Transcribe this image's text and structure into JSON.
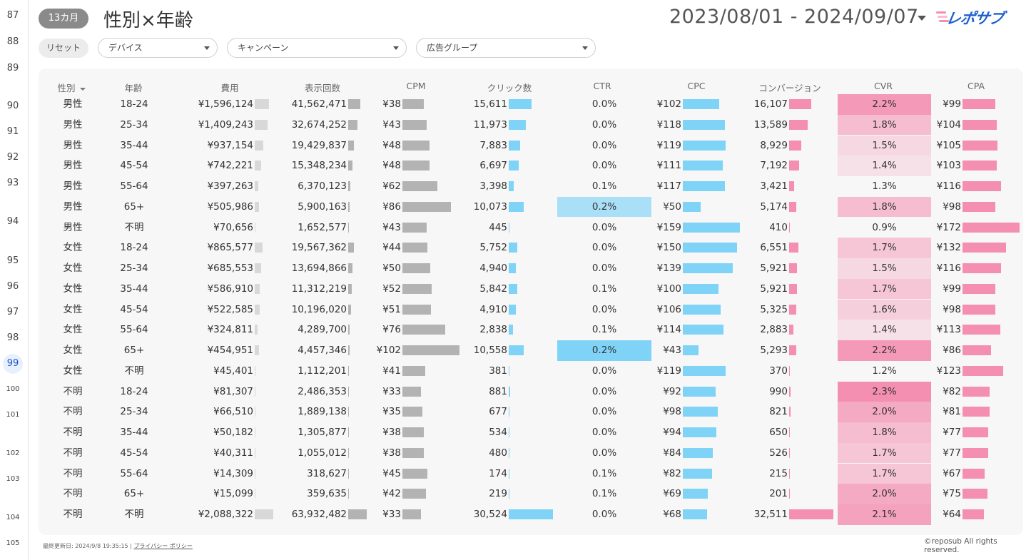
{
  "header": {
    "badge": "13カ月",
    "title": "性別×年齢",
    "date_range": "2023/08/01 - 2024/09/07",
    "logo_text": "レポサブ"
  },
  "filters": {
    "reset": "リセット",
    "device": "デバイス",
    "campaign": "キャンペーン",
    "adgroup": "広告グループ"
  },
  "row_numbers": [
    "87",
    "88",
    "89",
    "90",
    "91",
    "92",
    "93",
    "94",
    "95",
    "96",
    "97",
    "98",
    "99",
    "100",
    "101",
    "102",
    "103",
    "104",
    "105"
  ],
  "active_row_number": "99",
  "columns": [
    "性別",
    "年齢",
    "費用",
    "表示回数",
    "CPM",
    "クリック数",
    "CTR",
    "CPC",
    "コンバージョン",
    "CVR",
    "CPA"
  ],
  "rows": [
    {
      "gender": "男性",
      "age": "18-24",
      "cost": "¥1,596,124",
      "cost_v": 1596124,
      "imp": "41,562,471",
      "imp_v": 41562471,
      "cpm": "¥38",
      "cpm_v": 38,
      "clicks": "15,611",
      "clicks_v": 15611,
      "ctr": "0.0%",
      "ctr_v": 0.0,
      "cpc": "¥102",
      "cpc_v": 102,
      "conv": "16,107",
      "conv_v": 16107,
      "cvr": "2.2%",
      "cvr_v": 2.2,
      "cpa": "¥99",
      "cpa_v": 99
    },
    {
      "gender": "男性",
      "age": "25-34",
      "cost": "¥1,409,243",
      "cost_v": 1409243,
      "imp": "32,674,252",
      "imp_v": 32674252,
      "cpm": "¥43",
      "cpm_v": 43,
      "clicks": "11,973",
      "clicks_v": 11973,
      "ctr": "0.0%",
      "ctr_v": 0.0,
      "cpc": "¥118",
      "cpc_v": 118,
      "conv": "13,589",
      "conv_v": 13589,
      "cvr": "1.8%",
      "cvr_v": 1.8,
      "cpa": "¥104",
      "cpa_v": 104
    },
    {
      "gender": "男性",
      "age": "35-44",
      "cost": "¥937,154",
      "cost_v": 937154,
      "imp": "19,429,837",
      "imp_v": 19429837,
      "cpm": "¥48",
      "cpm_v": 48,
      "clicks": "7,883",
      "clicks_v": 7883,
      "ctr": "0.0%",
      "ctr_v": 0.0,
      "cpc": "¥119",
      "cpc_v": 119,
      "conv": "8,929",
      "conv_v": 8929,
      "cvr": "1.5%",
      "cvr_v": 1.5,
      "cpa": "¥105",
      "cpa_v": 105
    },
    {
      "gender": "男性",
      "age": "45-54",
      "cost": "¥742,221",
      "cost_v": 742221,
      "imp": "15,348,234",
      "imp_v": 15348234,
      "cpm": "¥48",
      "cpm_v": 48,
      "clicks": "6,697",
      "clicks_v": 6697,
      "ctr": "0.0%",
      "ctr_v": 0.0,
      "cpc": "¥111",
      "cpc_v": 111,
      "conv": "7,192",
      "conv_v": 7192,
      "cvr": "1.4%",
      "cvr_v": 1.4,
      "cpa": "¥103",
      "cpa_v": 103
    },
    {
      "gender": "男性",
      "age": "55-64",
      "cost": "¥397,263",
      "cost_v": 397263,
      "imp": "6,370,123",
      "imp_v": 6370123,
      "cpm": "¥62",
      "cpm_v": 62,
      "clicks": "3,398",
      "clicks_v": 3398,
      "ctr": "0.1%",
      "ctr_v": 0.1,
      "cpc": "¥117",
      "cpc_v": 117,
      "conv": "3,421",
      "conv_v": 3421,
      "cvr": "1.3%",
      "cvr_v": 1.3,
      "cpa": "¥116",
      "cpa_v": 116
    },
    {
      "gender": "男性",
      "age": "65+",
      "cost": "¥505,986",
      "cost_v": 505986,
      "imp": "5,900,163",
      "imp_v": 5900163,
      "cpm": "¥86",
      "cpm_v": 86,
      "clicks": "10,073",
      "clicks_v": 10073,
      "ctr": "0.2%",
      "ctr_v": 0.17,
      "cpc": "¥50",
      "cpc_v": 50,
      "conv": "5,174",
      "conv_v": 5174,
      "cvr": "1.8%",
      "cvr_v": 1.8,
      "cpa": "¥98",
      "cpa_v": 98
    },
    {
      "gender": "男性",
      "age": "不明",
      "cost": "¥70,656",
      "cost_v": 70656,
      "imp": "1,652,577",
      "imp_v": 1652577,
      "cpm": "¥43",
      "cpm_v": 43,
      "clicks": "445",
      "clicks_v": 445,
      "ctr": "0.0%",
      "ctr_v": 0.0,
      "cpc": "¥159",
      "cpc_v": 159,
      "conv": "410",
      "conv_v": 410,
      "cvr": "0.9%",
      "cvr_v": 0.9,
      "cpa": "¥172",
      "cpa_v": 172
    },
    {
      "gender": "女性",
      "age": "18-24",
      "cost": "¥865,577",
      "cost_v": 865577,
      "imp": "19,567,362",
      "imp_v": 19567362,
      "cpm": "¥44",
      "cpm_v": 44,
      "clicks": "5,752",
      "clicks_v": 5752,
      "ctr": "0.0%",
      "ctr_v": 0.0,
      "cpc": "¥150",
      "cpc_v": 150,
      "conv": "6,551",
      "conv_v": 6551,
      "cvr": "1.7%",
      "cvr_v": 1.7,
      "cpa": "¥132",
      "cpa_v": 132
    },
    {
      "gender": "女性",
      "age": "25-34",
      "cost": "¥685,553",
      "cost_v": 685553,
      "imp": "13,694,866",
      "imp_v": 13694866,
      "cpm": "¥50",
      "cpm_v": 50,
      "clicks": "4,940",
      "clicks_v": 4940,
      "ctr": "0.0%",
      "ctr_v": 0.0,
      "cpc": "¥139",
      "cpc_v": 139,
      "conv": "5,921",
      "conv_v": 5921,
      "cvr": "1.5%",
      "cvr_v": 1.5,
      "cpa": "¥116",
      "cpa_v": 116
    },
    {
      "gender": "女性",
      "age": "35-44",
      "cost": "¥586,910",
      "cost_v": 586910,
      "imp": "11,312,219",
      "imp_v": 11312219,
      "cpm": "¥52",
      "cpm_v": 52,
      "clicks": "5,842",
      "clicks_v": 5842,
      "ctr": "0.1%",
      "ctr_v": 0.1,
      "cpc": "¥100",
      "cpc_v": 100,
      "conv": "5,921",
      "conv_v": 5921,
      "cvr": "1.7%",
      "cvr_v": 1.7,
      "cpa": "¥99",
      "cpa_v": 99
    },
    {
      "gender": "女性",
      "age": "45-54",
      "cost": "¥522,585",
      "cost_v": 522585,
      "imp": "10,196,020",
      "imp_v": 10196020,
      "cpm": "¥51",
      "cpm_v": 51,
      "clicks": "4,910",
      "clicks_v": 4910,
      "ctr": "0.0%",
      "ctr_v": 0.0,
      "cpc": "¥106",
      "cpc_v": 106,
      "conv": "5,325",
      "conv_v": 5325,
      "cvr": "1.6%",
      "cvr_v": 1.6,
      "cpa": "¥98",
      "cpa_v": 98
    },
    {
      "gender": "女性",
      "age": "55-64",
      "cost": "¥324,811",
      "cost_v": 324811,
      "imp": "4,289,700",
      "imp_v": 4289700,
      "cpm": "¥76",
      "cpm_v": 76,
      "clicks": "2,838",
      "clicks_v": 2838,
      "ctr": "0.1%",
      "ctr_v": 0.1,
      "cpc": "¥114",
      "cpc_v": 114,
      "conv": "2,883",
      "conv_v": 2883,
      "cvr": "1.4%",
      "cvr_v": 1.4,
      "cpa": "¥113",
      "cpa_v": 113
    },
    {
      "gender": "女性",
      "age": "65+",
      "cost": "¥454,951",
      "cost_v": 454951,
      "imp": "4,457,346",
      "imp_v": 4457346,
      "cpm": "¥102",
      "cpm_v": 102,
      "clicks": "10,558",
      "clicks_v": 10558,
      "ctr": "0.2%",
      "ctr_v": 0.24,
      "cpc": "¥43",
      "cpc_v": 43,
      "conv": "5,293",
      "conv_v": 5293,
      "cvr": "2.2%",
      "cvr_v": 2.2,
      "cpa": "¥86",
      "cpa_v": 86
    },
    {
      "gender": "女性",
      "age": "不明",
      "cost": "¥45,401",
      "cost_v": 45401,
      "imp": "1,112,201",
      "imp_v": 1112201,
      "cpm": "¥41",
      "cpm_v": 41,
      "clicks": "381",
      "clicks_v": 381,
      "ctr": "0.0%",
      "ctr_v": 0.0,
      "cpc": "¥119",
      "cpc_v": 119,
      "conv": "370",
      "conv_v": 370,
      "cvr": "1.2%",
      "cvr_v": 1.2,
      "cpa": "¥123",
      "cpa_v": 123
    },
    {
      "gender": "不明",
      "age": "18-24",
      "cost": "¥81,307",
      "cost_v": 81307,
      "imp": "2,486,353",
      "imp_v": 2486353,
      "cpm": "¥33",
      "cpm_v": 33,
      "clicks": "881",
      "clicks_v": 881,
      "ctr": "0.0%",
      "ctr_v": 0.0,
      "cpc": "¥92",
      "cpc_v": 92,
      "conv": "990",
      "conv_v": 990,
      "cvr": "2.3%",
      "cvr_v": 2.3,
      "cpa": "¥82",
      "cpa_v": 82
    },
    {
      "gender": "不明",
      "age": "25-34",
      "cost": "¥66,510",
      "cost_v": 66510,
      "imp": "1,889,138",
      "imp_v": 1889138,
      "cpm": "¥35",
      "cpm_v": 35,
      "clicks": "677",
      "clicks_v": 677,
      "ctr": "0.0%",
      "ctr_v": 0.0,
      "cpc": "¥98",
      "cpc_v": 98,
      "conv": "821",
      "conv_v": 821,
      "cvr": "2.0%",
      "cvr_v": 2.0,
      "cpa": "¥81",
      "cpa_v": 81
    },
    {
      "gender": "不明",
      "age": "35-44",
      "cost": "¥50,182",
      "cost_v": 50182,
      "imp": "1,305,877",
      "imp_v": 1305877,
      "cpm": "¥38",
      "cpm_v": 38,
      "clicks": "534",
      "clicks_v": 534,
      "ctr": "0.0%",
      "ctr_v": 0.0,
      "cpc": "¥94",
      "cpc_v": 94,
      "conv": "650",
      "conv_v": 650,
      "cvr": "1.8%",
      "cvr_v": 1.8,
      "cpa": "¥77",
      "cpa_v": 77
    },
    {
      "gender": "不明",
      "age": "45-54",
      "cost": "¥40,311",
      "cost_v": 40311,
      "imp": "1,055,012",
      "imp_v": 1055012,
      "cpm": "¥38",
      "cpm_v": 38,
      "clicks": "480",
      "clicks_v": 480,
      "ctr": "0.0%",
      "ctr_v": 0.0,
      "cpc": "¥84",
      "cpc_v": 84,
      "conv": "526",
      "conv_v": 526,
      "cvr": "1.7%",
      "cvr_v": 1.7,
      "cpa": "¥77",
      "cpa_v": 77
    },
    {
      "gender": "不明",
      "age": "55-64",
      "cost": "¥14,309",
      "cost_v": 14309,
      "imp": "318,627",
      "imp_v": 318627,
      "cpm": "¥45",
      "cpm_v": 45,
      "clicks": "174",
      "clicks_v": 174,
      "ctr": "0.1%",
      "ctr_v": 0.1,
      "cpc": "¥82",
      "cpc_v": 82,
      "conv": "215",
      "conv_v": 215,
      "cvr": "1.7%",
      "cvr_v": 1.7,
      "cpa": "¥67",
      "cpa_v": 67
    },
    {
      "gender": "不明",
      "age": "65+",
      "cost": "¥15,099",
      "cost_v": 15099,
      "imp": "359,635",
      "imp_v": 359635,
      "cpm": "¥42",
      "cpm_v": 42,
      "clicks": "219",
      "clicks_v": 219,
      "ctr": "0.1%",
      "ctr_v": 0.1,
      "cpc": "¥69",
      "cpc_v": 69,
      "conv": "201",
      "conv_v": 201,
      "cvr": "2.0%",
      "cvr_v": 2.0,
      "cpa": "¥75",
      "cpa_v": 75
    },
    {
      "gender": "不明",
      "age": "不明",
      "cost": "¥2,088,322",
      "cost_v": 2088322,
      "imp": "63,932,482",
      "imp_v": 63932482,
      "cpm": "¥33",
      "cpm_v": 33,
      "clicks": "30,524",
      "clicks_v": 30524,
      "ctr": "0.0%",
      "ctr_v": 0.0,
      "cpc": "¥68",
      "cpc_v": 68,
      "conv": "32,511",
      "conv_v": 32511,
      "cvr": "2.1%",
      "cvr_v": 2.1,
      "cpa": "¥64",
      "cpa_v": 64
    }
  ],
  "footer": {
    "updated": "最終更新日: 2024/9/8 19:35:15",
    "privacy": "プライバシー ポリシー",
    "copyright": "©reposub All rights reserved."
  },
  "colors": {
    "bar_gray_light": "#d8d8d8",
    "bar_gray": "#b3b3b3",
    "bar_blue": "#7fd3f7",
    "bar_pink": "#f48fb1",
    "ctr_highlight": "#7fd3f7",
    "cvr_highlight": "#f48fb1",
    "logo_blue": "#1e5fd0",
    "logo_pink": "#f48fb1"
  }
}
